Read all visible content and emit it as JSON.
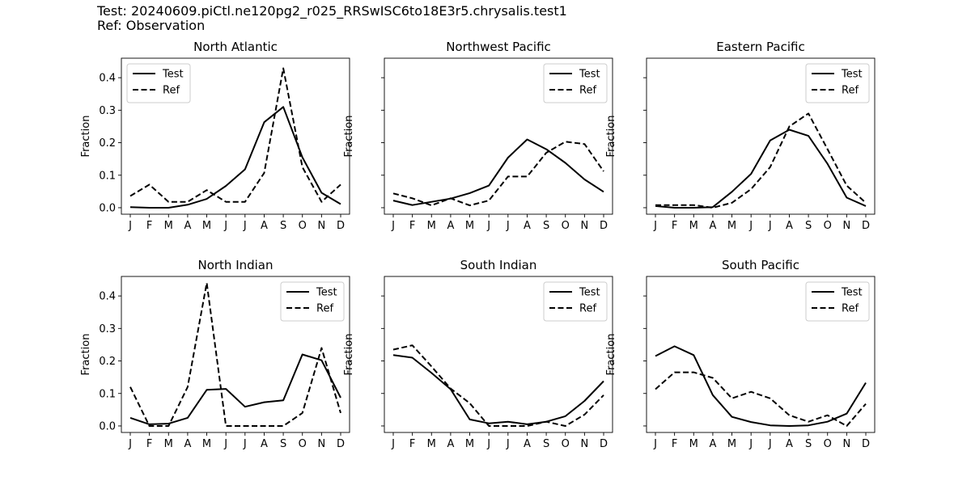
{
  "header": {
    "line1": "Test: 20240609.piCtl.ne120pg2_r025_RRSwISC6to18E3r5.chrysalis.test1",
    "line2": "Ref: Observation"
  },
  "chart_data": [
    {
      "type": "line",
      "title": "North Atlantic",
      "categories": [
        "J",
        "F",
        "M",
        "A",
        "M",
        "J",
        "J",
        "A",
        "S",
        "O",
        "N",
        "D"
      ],
      "ylabel": "Fraction",
      "ylim": [
        -0.02,
        0.46
      ],
      "yticks": [
        0.0,
        0.1,
        0.2,
        0.3,
        0.4
      ],
      "yticklabels": [
        "0.0",
        "0.1",
        "0.2",
        "0.3",
        "0.4"
      ],
      "show_yticklabels": true,
      "legend": "top-left",
      "series": [
        {
          "name": "Test",
          "style": "solid",
          "values": [
            0.002,
            0.0,
            0.0,
            0.009,
            0.027,
            0.067,
            0.118,
            0.263,
            0.31,
            0.155,
            0.046,
            0.011
          ]
        },
        {
          "name": "Ref",
          "style": "dashed",
          "values": [
            0.036,
            0.071,
            0.018,
            0.018,
            0.054,
            0.018,
            0.018,
            0.107,
            0.429,
            0.125,
            0.018,
            0.071
          ]
        }
      ]
    },
    {
      "type": "line",
      "title": "Northwest Pacific",
      "categories": [
        "J",
        "F",
        "M",
        "A",
        "M",
        "J",
        "J",
        "A",
        "S",
        "O",
        "N",
        "D"
      ],
      "ylabel": "Fraction",
      "ylim": [
        -0.02,
        0.46
      ],
      "yticks": [
        0.0,
        0.1,
        0.2,
        0.3,
        0.4
      ],
      "yticklabels": [
        "0.0",
        "0.1",
        "0.2",
        "0.3",
        "0.4"
      ],
      "show_yticklabels": false,
      "legend": "top-right",
      "series": [
        {
          "name": "Test",
          "style": "solid",
          "values": [
            0.022,
            0.008,
            0.018,
            0.028,
            0.045,
            0.068,
            0.154,
            0.21,
            0.18,
            0.138,
            0.087,
            0.049
          ]
        },
        {
          "name": "Ref",
          "style": "dashed",
          "values": [
            0.044,
            0.029,
            0.007,
            0.029,
            0.007,
            0.022,
            0.096,
            0.096,
            0.169,
            0.203,
            0.196,
            0.112
          ]
        }
      ]
    },
    {
      "type": "line",
      "title": "Eastern Pacific",
      "categories": [
        "J",
        "F",
        "M",
        "A",
        "M",
        "J",
        "J",
        "A",
        "S",
        "O",
        "N",
        "D"
      ],
      "ylabel": "Fraction",
      "ylim": [
        -0.02,
        0.46
      ],
      "yticks": [
        0.0,
        0.1,
        0.2,
        0.3,
        0.4
      ],
      "yticklabels": [
        "0.0",
        "0.1",
        "0.2",
        "0.3",
        "0.4"
      ],
      "show_yticklabels": false,
      "legend": "top-right",
      "series": [
        {
          "name": "Test",
          "style": "solid",
          "values": [
            0.005,
            0.0,
            0.0,
            0.002,
            0.049,
            0.104,
            0.207,
            0.24,
            0.221,
            0.135,
            0.031,
            0.005
          ]
        },
        {
          "name": "Ref",
          "style": "dashed",
          "values": [
            0.008,
            0.008,
            0.008,
            0.0,
            0.015,
            0.057,
            0.125,
            0.25,
            0.29,
            0.18,
            0.068,
            0.015
          ]
        }
      ]
    },
    {
      "type": "line",
      "title": "North Indian",
      "categories": [
        "J",
        "F",
        "M",
        "A",
        "M",
        "J",
        "J",
        "A",
        "S",
        "O",
        "N",
        "D"
      ],
      "ylabel": "Fraction",
      "ylim": [
        -0.02,
        0.46
      ],
      "yticks": [
        0.0,
        0.1,
        0.2,
        0.3,
        0.4
      ],
      "yticklabels": [
        "0.0",
        "0.1",
        "0.2",
        "0.3",
        "0.4"
      ],
      "show_yticklabels": true,
      "legend": "top-right",
      "series": [
        {
          "name": "Test",
          "style": "solid",
          "values": [
            0.025,
            0.005,
            0.007,
            0.025,
            0.111,
            0.114,
            0.059,
            0.073,
            0.079,
            0.22,
            0.202,
            0.087
          ]
        },
        {
          "name": "Ref",
          "style": "dashed",
          "values": [
            0.12,
            0.0,
            0.0,
            0.12,
            0.44,
            0.0,
            0.0,
            0.0,
            0.0,
            0.04,
            0.24,
            0.04
          ]
        }
      ]
    },
    {
      "type": "line",
      "title": "South Indian",
      "categories": [
        "J",
        "F",
        "M",
        "A",
        "M",
        "J",
        "J",
        "A",
        "S",
        "O",
        "N",
        "D"
      ],
      "ylabel": "Fraction",
      "ylim": [
        -0.02,
        0.46
      ],
      "yticks": [
        0.0,
        0.1,
        0.2,
        0.3,
        0.4
      ],
      "yticklabels": [
        "0.0",
        "0.1",
        "0.2",
        "0.3",
        "0.4"
      ],
      "show_yticklabels": false,
      "legend": "top-right",
      "series": [
        {
          "name": "Test",
          "style": "solid",
          "values": [
            0.218,
            0.21,
            0.163,
            0.113,
            0.02,
            0.008,
            0.013,
            0.005,
            0.013,
            0.03,
            0.077,
            0.138
          ]
        },
        {
          "name": "Ref",
          "style": "dashed",
          "values": [
            0.235,
            0.248,
            0.183,
            0.115,
            0.07,
            0.0,
            0.0,
            0.0,
            0.013,
            0.0,
            0.035,
            0.095
          ]
        }
      ]
    },
    {
      "type": "line",
      "title": "South Pacific",
      "categories": [
        "J",
        "F",
        "M",
        "A",
        "M",
        "J",
        "J",
        "A",
        "S",
        "O",
        "N",
        "D"
      ],
      "ylabel": "Fraction",
      "ylim": [
        -0.02,
        0.46
      ],
      "yticks": [
        0.0,
        0.1,
        0.2,
        0.3,
        0.4
      ],
      "yticklabels": [
        "0.0",
        "0.1",
        "0.2",
        "0.3",
        "0.4"
      ],
      "show_yticklabels": false,
      "legend": "top-right",
      "series": [
        {
          "name": "Test",
          "style": "solid",
          "values": [
            0.215,
            0.245,
            0.218,
            0.095,
            0.028,
            0.012,
            0.002,
            0.0,
            0.002,
            0.013,
            0.038,
            0.133
          ]
        },
        {
          "name": "Ref",
          "style": "dashed",
          "values": [
            0.113,
            0.165,
            0.165,
            0.148,
            0.085,
            0.105,
            0.085,
            0.033,
            0.013,
            0.033,
            0.0,
            0.068
          ]
        }
      ]
    }
  ]
}
